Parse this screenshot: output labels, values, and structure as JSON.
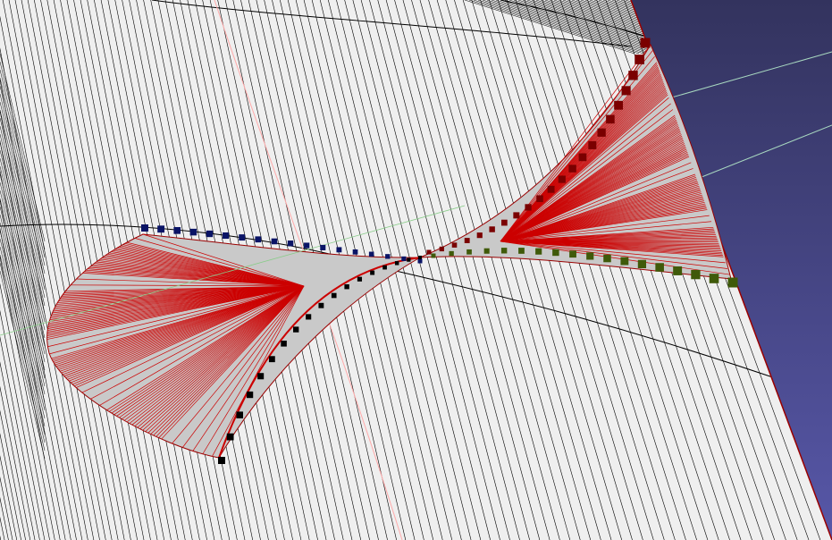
{
  "viewport": {
    "background_top": "#33335e",
    "background_bottom": "#5757a8"
  },
  "surface": {
    "fill": "#efefef",
    "ruling_color": "#000000",
    "outline_color": "#000000",
    "guide_color": "#ffaaaa"
  },
  "lofted_shape": {
    "fill": "#c9c9c9",
    "stripe_color": "#cc0000",
    "edge_color": "#990000",
    "axis_color": "#88cc88"
  },
  "control_points": {
    "upper_left_color": "#0a1466",
    "lower_left_color": "#000000",
    "upper_right_color": "#7a0000",
    "lower_right_color": "#3f5a0a"
  },
  "construction_lines": {
    "color": "#a8d8c0"
  }
}
